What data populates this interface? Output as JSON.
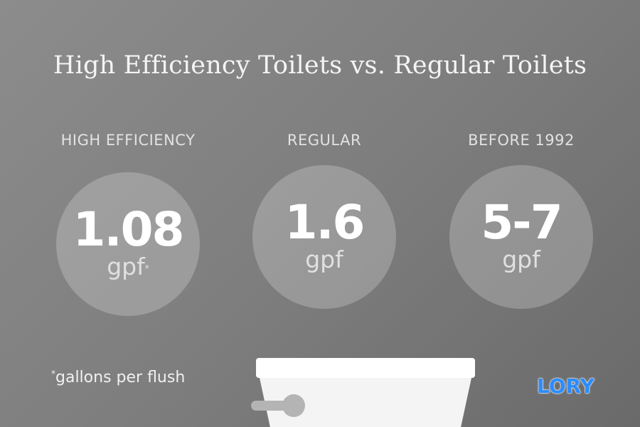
{
  "title": "High Efficiency Toilets vs. Regular Toilets",
  "items": [
    {
      "label": "HIGH EFFICIENCY",
      "value": "1.08",
      "unit": "gpf",
      "note_marker": "*"
    },
    {
      "label": "REGULAR",
      "value": "1.6",
      "unit": "gpf",
      "note_marker": ""
    },
    {
      "label": "BEFORE 1992",
      "value": "5-7",
      "unit": "gpf",
      "note_marker": ""
    }
  ],
  "footnote": {
    "marker": "*",
    "text": "gallons per flush"
  },
  "logo": {
    "text": "LORY",
    "color": "#2a8cff"
  },
  "colors": {
    "background": "#7e7e7e",
    "circle": "#a0a0a0",
    "toilet": "#ffffff",
    "handle": "#b4b4b4"
  }
}
